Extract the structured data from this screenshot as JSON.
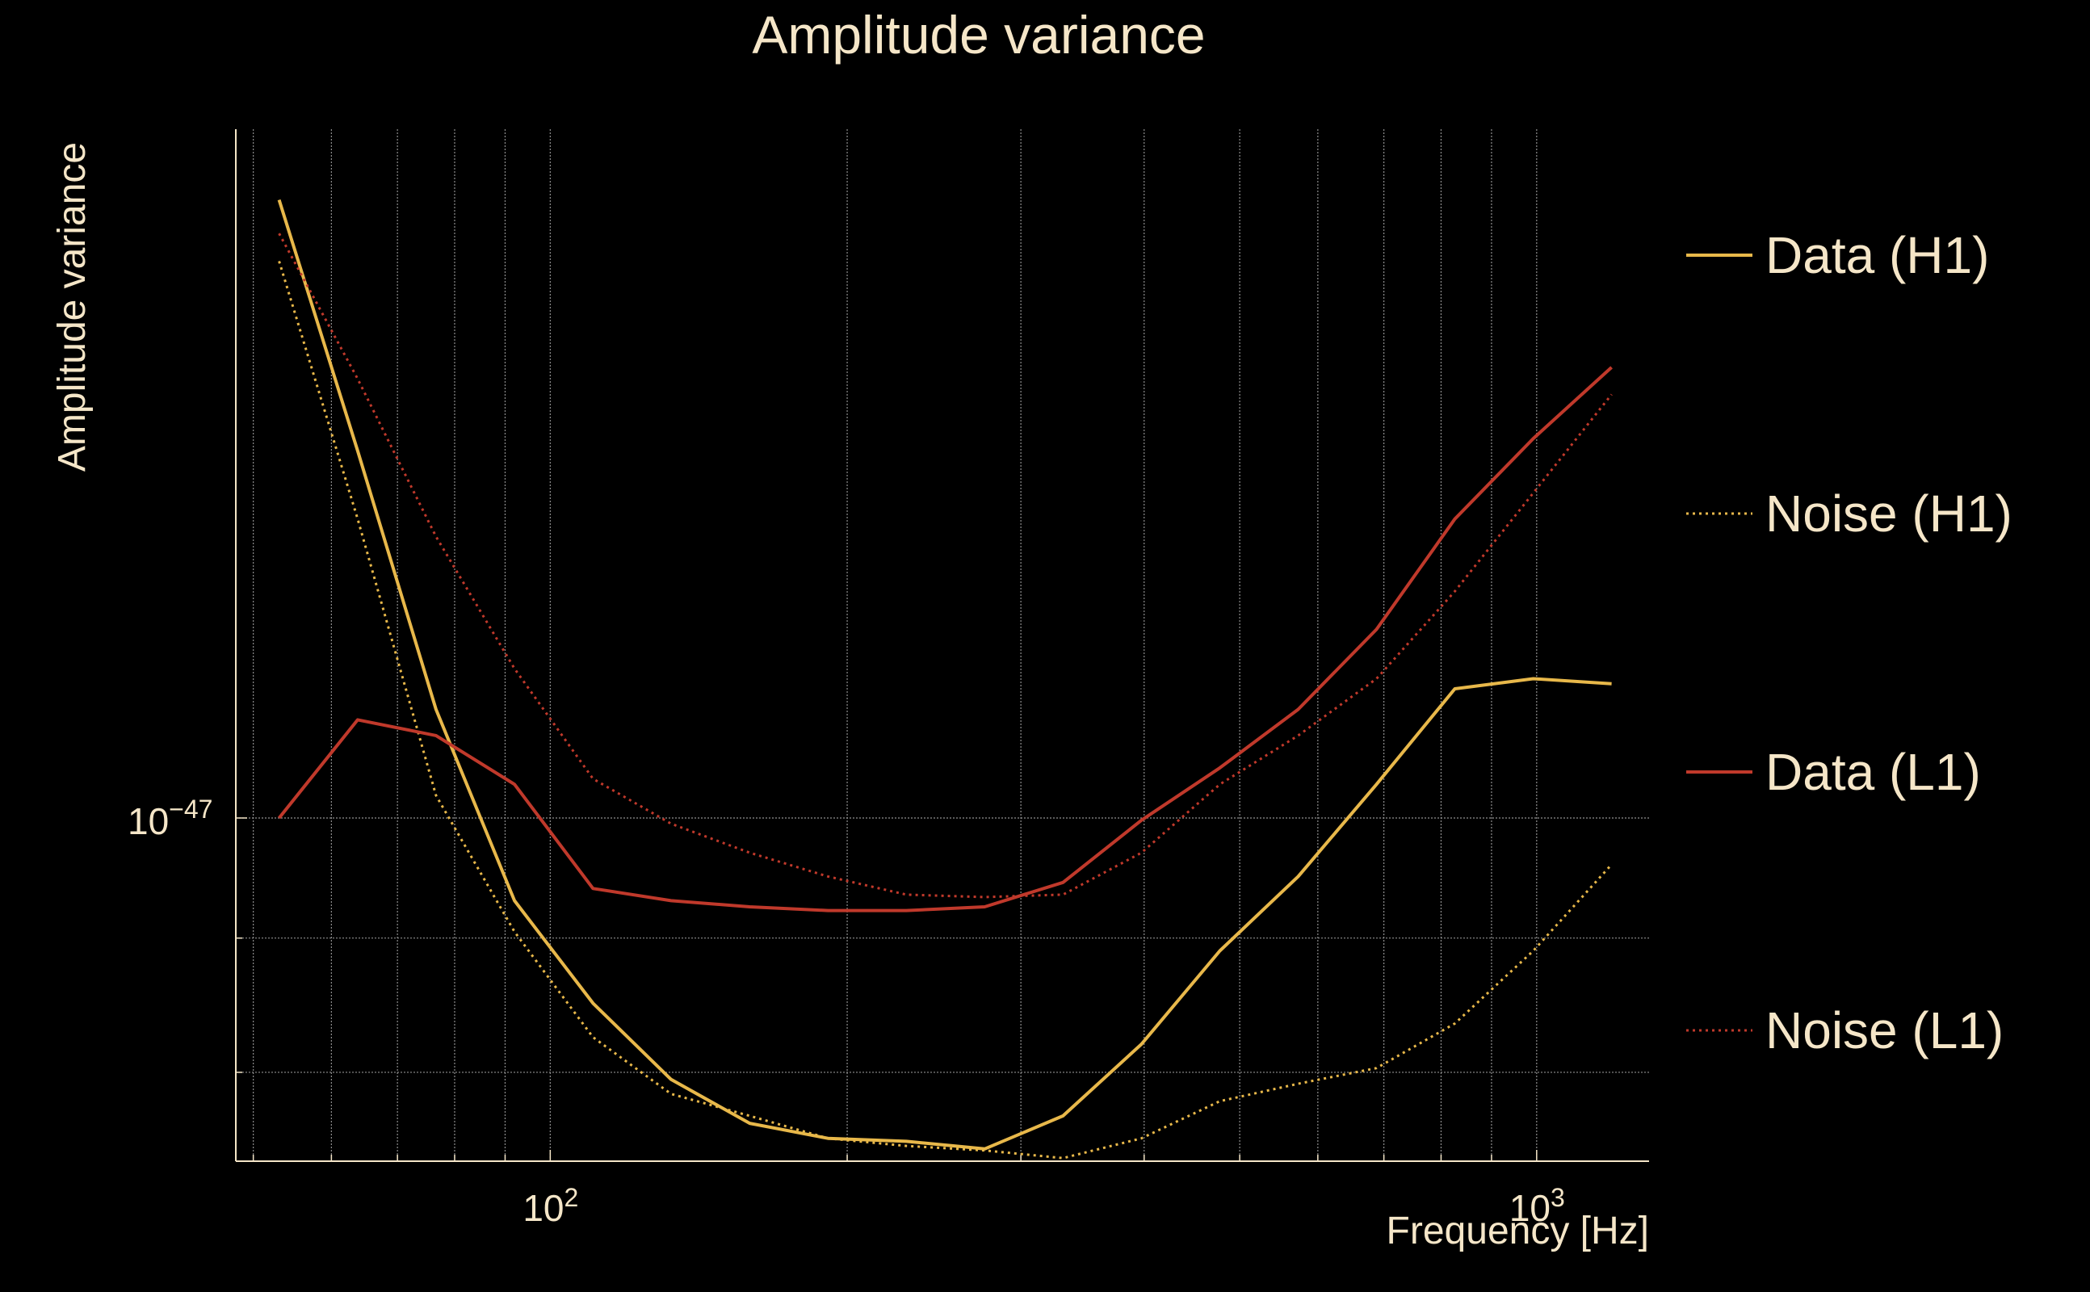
{
  "chart_data": {
    "type": "line",
    "title": "Amplitude variance",
    "xlabel": "Frequency [Hz]",
    "ylabel": "Amplitude variance",
    "xscale": "log",
    "yscale": "log",
    "xlim": [
      48,
      1300
    ],
    "ylim": [
      7.4e-48,
      1.83e-47
    ],
    "grid": true,
    "legend_position": "right",
    "x_ticks": [
      {
        "value": 100,
        "base": "10",
        "exp": "2"
      },
      {
        "value": 1000,
        "base": "10",
        "exp": "3"
      }
    ],
    "y_ticks": [
      {
        "value": 1e-47,
        "base": "10",
        "exp": "−47"
      }
    ],
    "series": [
      {
        "name": "Data (H1)",
        "color": "#e8b84a",
        "style": "solid",
        "x": [
          53.1,
          63.8,
          76.6,
          92,
          110.5,
          132.6,
          159.3,
          191.2,
          229.6,
          275.7,
          331,
          397.5,
          477.3,
          573.1,
          688.1,
          826.2,
          992.1,
          1191.2
        ],
        "y": [
          1.72e-47,
          1.38e-47,
          1.1e-47,
          9.3e-48,
          8.5e-48,
          7.95e-48,
          7.65e-48,
          7.55e-48,
          7.53e-48,
          7.48e-48,
          7.7e-48,
          8.2e-48,
          8.9e-48,
          9.5e-48,
          1.03e-47,
          1.12e-47,
          1.13e-47,
          1.125e-47
        ]
      },
      {
        "name": "Noise (H1)",
        "color": "#e8b84a",
        "style": "dotted",
        "x": [
          53.1,
          63.8,
          76.6,
          92,
          110.5,
          132.6,
          159.3,
          191.2,
          229.6,
          275.7,
          331,
          397.5,
          477.3,
          573.1,
          688.1,
          826.2,
          992.1,
          1191.2
        ],
        "y": [
          1.63e-47,
          1.3e-47,
          1.02e-47,
          9.05e-48,
          8.25e-48,
          7.85e-48,
          7.7e-48,
          7.55e-48,
          7.5e-48,
          7.47e-48,
          7.42e-48,
          7.55e-48,
          7.8e-48,
          7.92e-48,
          8.03e-48,
          8.35e-48,
          8.9e-48,
          9.6e-48
        ]
      },
      {
        "name": "Data (L1)",
        "color": "#c0392b",
        "style": "solid",
        "x": [
          53.1,
          63.8,
          76.6,
          92,
          110.5,
          132.6,
          159.3,
          191.2,
          229.6,
          275.7,
          331,
          397.5,
          477.3,
          573.1,
          688.1,
          826.2,
          992.1,
          1191.2
        ],
        "y": [
          1e-47,
          1.09e-47,
          1.075e-47,
          1.03e-47,
          9.4e-48,
          9.3e-48,
          9.25e-48,
          9.22e-48,
          9.22e-48,
          9.25e-48,
          9.45e-48,
          9.98e-48,
          1.045e-47,
          1.1e-47,
          1.18e-47,
          1.3e-47,
          1.395e-47,
          1.485e-47
        ]
      },
      {
        "name": "Noise (L1)",
        "color": "#c0392b",
        "style": "dotted",
        "x": [
          53.1,
          63.8,
          76.6,
          92,
          110.5,
          132.6,
          159.3,
          191.2,
          229.6,
          275.7,
          331,
          397.5,
          477.3,
          573.1,
          688.1,
          826.2,
          992.1,
          1191.2
        ],
        "y": [
          1.67e-47,
          1.47e-47,
          1.28e-47,
          1.14e-47,
          1.035e-47,
          9.95e-48,
          9.7e-48,
          9.5e-48,
          9.35e-48,
          9.33e-48,
          9.35e-48,
          9.7e-48,
          1.03e-47,
          1.075e-47,
          1.13e-47,
          1.22e-47,
          1.33e-47,
          1.45e-47
        ]
      }
    ]
  }
}
